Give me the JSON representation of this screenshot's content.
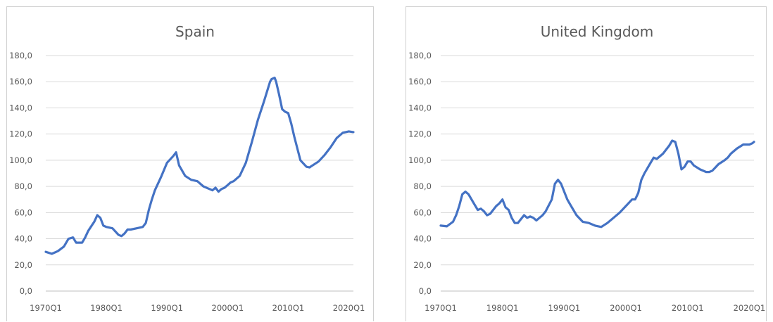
{
  "chart_data": [
    {
      "type": "line",
      "title": "Spain",
      "xlabel": "",
      "ylabel": "",
      "ylim": [
        0,
        180
      ],
      "ytick_labels": [
        "0,0",
        "20,0",
        "40,0",
        "60,0",
        "80,0",
        "100,0",
        "120,0",
        "140,0",
        "160,0",
        "180,0"
      ],
      "xtick_labels": [
        "1970Q1",
        "1980Q1",
        "1990Q1",
        "2000Q1",
        "2010Q1",
        "2020Q1"
      ],
      "xlim": [
        1970.0,
        2020.75
      ],
      "grid": true,
      "series": [
        {
          "color": "#4472c4",
          "x": [
            1970.0,
            1971.0,
            1972.0,
            1973.0,
            1973.75,
            1974.5,
            1975.0,
            1976.0,
            1976.5,
            1977.0,
            1978.0,
            1978.5,
            1979.0,
            1979.5,
            1980.0,
            1981.0,
            1982.0,
            1982.5,
            1983.0,
            1983.5,
            1984.0,
            1985.0,
            1986.0,
            1986.5,
            1987.0,
            1987.5,
            1988.0,
            1989.0,
            1990.0,
            1991.0,
            1991.5,
            1992.0,
            1993.0,
            1994.0,
            1995.0,
            1996.0,
            1997.0,
            1997.5,
            1998.0,
            1998.5,
            1999.0,
            1999.5,
            2000.0,
            2000.5,
            2001.0,
            2002.0,
            2003.0,
            2004.0,
            2005.0,
            2006.0,
            2007.0,
            2007.25,
            2007.75,
            2008.0,
            2008.5,
            2009.0,
            2009.5,
            2010.0,
            2010.5,
            2011.0,
            2012.0,
            2013.0,
            2013.5,
            2014.0,
            2015.0,
            2016.0,
            2017.0,
            2018.0,
            2019.0,
            2020.0,
            2020.75
          ],
          "y": [
            30,
            28.5,
            30.5,
            34,
            40,
            41,
            37,
            37,
            41,
            46,
            53,
            58,
            56,
            50,
            49,
            48,
            43,
            42,
            44,
            47,
            47,
            48,
            49,
            52,
            62,
            70,
            77,
            87,
            98,
            103,
            106,
            96,
            88,
            85,
            84,
            80,
            78,
            77,
            79,
            76,
            78,
            79,
            81,
            83,
            84,
            88,
            98,
            114,
            131,
            145,
            160,
            162,
            163,
            160,
            150,
            139,
            137,
            136,
            128,
            118,
            100,
            95,
            94.5,
            96,
            99,
            104,
            110,
            117,
            121,
            122,
            121.5
          ]
        }
      ]
    },
    {
      "type": "line",
      "title": "United Kingdom",
      "xlabel": "",
      "ylabel": "",
      "ylim": [
        0,
        180
      ],
      "ytick_labels": [
        "0,0",
        "20,0",
        "40,0",
        "60,0",
        "80,0",
        "100,0",
        "120,0",
        "140,0",
        "160,0",
        "180,0"
      ],
      "xtick_labels": [
        "1970Q1",
        "1980Q1",
        "1990Q1",
        "2000Q1",
        "2010Q1",
        "2020Q1"
      ],
      "xlim": [
        1970.0,
        2020.75
      ],
      "grid": true,
      "series": [
        {
          "color": "#4472c4",
          "x": [
            1970.0,
            1971.0,
            1972.0,
            1972.5,
            1973.0,
            1973.5,
            1974.0,
            1974.5,
            1975.0,
            1975.5,
            1976.0,
            1976.5,
            1977.0,
            1977.5,
            1978.0,
            1979.0,
            1979.5,
            1980.0,
            1980.5,
            1981.0,
            1981.5,
            1982.0,
            1982.5,
            1983.0,
            1983.5,
            1984.0,
            1984.5,
            1985.0,
            1985.5,
            1986.0,
            1986.5,
            1987.0,
            1988.0,
            1988.5,
            1989.0,
            1989.5,
            1990.0,
            1990.5,
            1991.0,
            1992.0,
            1993.0,
            1994.0,
            1995.0,
            1996.0,
            1997.0,
            1998.0,
            1999.0,
            2000.0,
            2001.0,
            2001.5,
            2002.0,
            2002.5,
            2003.0,
            2004.0,
            2004.5,
            2005.0,
            2006.0,
            2007.0,
            2007.5,
            2008.0,
            2008.5,
            2009.0,
            2009.5,
            2010.0,
            2010.5,
            2011.0,
            2012.0,
            2013.0,
            2013.5,
            2014.0,
            2015.0,
            2016.0,
            2016.5,
            2017.0,
            2018.0,
            2019.0,
            2020.0,
            2020.5,
            2020.75
          ],
          "y": [
            50,
            49.5,
            53,
            58,
            65,
            74,
            76,
            74,
            70,
            66,
            62,
            63,
            61,
            58,
            59,
            65,
            67,
            70,
            64,
            62,
            56,
            52,
            52,
            55,
            58,
            56,
            57,
            56,
            54,
            56,
            58,
            61,
            70,
            82,
            85,
            82,
            76,
            70,
            66,
            58,
            53,
            52,
            50,
            49,
            52,
            56,
            60,
            65,
            70,
            70,
            75,
            85,
            90,
            98,
            102,
            101,
            105,
            111,
            115,
            114,
            105,
            93,
            95,
            99,
            99,
            96,
            93,
            91,
            91,
            92,
            97,
            100,
            102,
            105,
            109,
            112,
            112,
            113,
            114
          ]
        }
      ]
    }
  ]
}
